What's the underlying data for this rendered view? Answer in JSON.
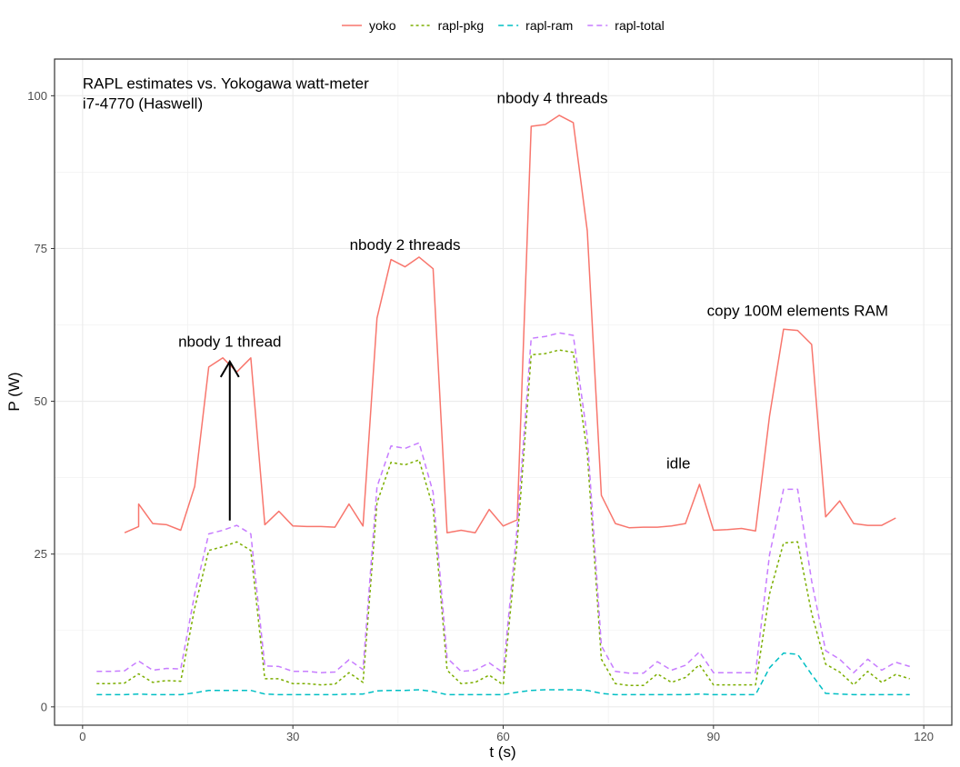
{
  "chart_data": {
    "type": "line",
    "xlabel": "t (s)",
    "ylabel": "P (W)",
    "xlim": [
      -4,
      124
    ],
    "ylim": [
      -3,
      106
    ],
    "xticks": [
      0,
      30,
      60,
      90,
      120
    ],
    "yticks": [
      0,
      25,
      50,
      75,
      100
    ],
    "grid": true,
    "legend_position": "top",
    "series": [
      {
        "name": "yoko",
        "color": "#F8766D",
        "dash": "solid",
        "x": [
          6,
          8,
          8,
          10,
          12,
          14,
          16,
          18,
          20,
          22,
          24,
          26,
          28,
          30,
          32,
          34,
          36,
          38,
          40,
          42,
          44,
          46,
          48,
          50,
          52,
          54,
          56,
          58,
          60,
          62,
          64,
          66,
          68,
          70,
          72,
          74,
          76,
          78,
          80,
          82,
          84,
          86,
          88,
          90,
          92,
          94,
          96,
          98,
          100,
          102,
          104,
          106,
          108,
          110,
          112,
          114,
          116
        ],
        "y": [
          28.5,
          29.5,
          33.2,
          30,
          29.8,
          28.9,
          36.1,
          55.6,
          57.1,
          54.8,
          57.1,
          29.8,
          32,
          29.6,
          29.5,
          29.5,
          29.4,
          33.2,
          29.6,
          63.6,
          73.2,
          72,
          73.6,
          71.7,
          28.5,
          28.9,
          28.5,
          32.3,
          29.6,
          30.6,
          95,
          95.3,
          96.8,
          95.6,
          77.9,
          34.6,
          30,
          29.3,
          29.4,
          29.4,
          29.6,
          30,
          36.4,
          28.9,
          29,
          29.2,
          28.8,
          47.6,
          61.8,
          61.6,
          59.3,
          31.1,
          33.7,
          30,
          29.7,
          29.7,
          30.9
        ]
      },
      {
        "name": "rapl-pkg",
        "color": "#7CAE00",
        "dash": "3,3",
        "x": [
          2,
          4,
          6,
          8,
          10,
          12,
          14,
          16,
          18,
          20,
          22,
          24,
          26,
          28,
          30,
          32,
          34,
          36,
          38,
          40,
          42,
          44,
          46,
          48,
          50,
          52,
          54,
          56,
          58,
          60,
          62,
          64,
          66,
          68,
          70,
          72,
          74,
          76,
          78,
          80,
          82,
          84,
          86,
          88,
          90,
          92,
          94,
          96,
          98,
          100,
          102,
          104,
          106,
          108,
          110,
          112,
          114,
          116,
          118
        ],
        "y": [
          3.8,
          3.8,
          3.9,
          5.4,
          4,
          4.3,
          4.2,
          16.2,
          25.6,
          26.2,
          27,
          25.6,
          4.6,
          4.6,
          3.8,
          3.8,
          3.6,
          3.7,
          5.6,
          4,
          33.4,
          40,
          39.6,
          40.4,
          32.6,
          6,
          3.8,
          4,
          5.2,
          3.6,
          27,
          57.6,
          57.8,
          58.4,
          58,
          41.5,
          7.8,
          3.8,
          3.5,
          3.5,
          5.4,
          4,
          4.8,
          6.9,
          3.6,
          3.6,
          3.6,
          3.6,
          18.5,
          26.8,
          27,
          15.3,
          7,
          5.7,
          3.6,
          5.8,
          4,
          5.3,
          4.6
        ]
      },
      {
        "name": "rapl-ram",
        "color": "#00BFC4",
        "dash": "6,4",
        "x": [
          2,
          4,
          6,
          8,
          10,
          12,
          14,
          16,
          18,
          20,
          22,
          24,
          26,
          28,
          30,
          32,
          34,
          36,
          38,
          40,
          42,
          44,
          46,
          48,
          50,
          52,
          54,
          56,
          58,
          60,
          62,
          64,
          66,
          68,
          70,
          72,
          74,
          76,
          78,
          80,
          82,
          84,
          86,
          88,
          90,
          92,
          94,
          96,
          98,
          100,
          102,
          104,
          106,
          108,
          110,
          112,
          114,
          116,
          118
        ],
        "y": [
          2,
          2,
          2,
          2.1,
          2,
          2,
          2,
          2.3,
          2.7,
          2.7,
          2.7,
          2.7,
          2.1,
          2,
          2,
          2,
          2,
          2,
          2.1,
          2.1,
          2.6,
          2.7,
          2.7,
          2.8,
          2.5,
          2,
          2,
          2,
          2,
          2,
          2.4,
          2.7,
          2.8,
          2.8,
          2.8,
          2.7,
          2.2,
          2,
          2,
          2,
          2,
          2,
          2,
          2.1,
          2,
          2,
          2,
          2,
          6.4,
          8.8,
          8.6,
          5.3,
          2.2,
          2.1,
          2,
          2,
          2,
          2,
          2
        ]
      },
      {
        "name": "rapl-total",
        "color": "#C77CFF",
        "dash": "6,4",
        "x": [
          2,
          4,
          6,
          8,
          10,
          12,
          14,
          16,
          18,
          20,
          22,
          24,
          26,
          28,
          30,
          32,
          34,
          36,
          38,
          40,
          42,
          44,
          46,
          48,
          50,
          52,
          54,
          56,
          58,
          60,
          62,
          64,
          66,
          68,
          70,
          72,
          74,
          76,
          78,
          80,
          82,
          84,
          86,
          88,
          90,
          92,
          94,
          96,
          98,
          100,
          102,
          104,
          106,
          108,
          110,
          112,
          114,
          116,
          118
        ],
        "y": [
          5.8,
          5.8,
          5.9,
          7.5,
          6,
          6.3,
          6.2,
          18.5,
          28.3,
          28.9,
          29.7,
          28.3,
          6.7,
          6.6,
          5.8,
          5.8,
          5.6,
          5.7,
          7.7,
          6.1,
          36,
          42.7,
          42.3,
          43.2,
          35.1,
          8,
          5.8,
          6,
          7.2,
          5.6,
          29.4,
          60.3,
          60.6,
          61.2,
          60.8,
          44.2,
          10,
          5.8,
          5.5,
          5.5,
          7.4,
          6,
          6.8,
          9,
          5.6,
          5.6,
          5.6,
          5.6,
          24.9,
          35.6,
          35.6,
          20.6,
          9.2,
          7.8,
          5.6,
          7.8,
          6,
          7.3,
          6.6
        ]
      }
    ],
    "annotations": [
      {
        "text": "RAPL estimates vs. Yokogawa watt-meter",
        "x": 0,
        "y": 101.2,
        "anchor": "start"
      },
      {
        "text": "i7-4770 (Haswell)",
        "x": 0,
        "y": 97.9,
        "anchor": "start"
      },
      {
        "text": "nbody 1 thread",
        "x": 21,
        "y": 58.9,
        "anchor": "middle"
      },
      {
        "text": "nbody 2 threads",
        "x": 46,
        "y": 74.8,
        "anchor": "middle"
      },
      {
        "text": "nbody 4 threads",
        "x": 67,
        "y": 98.8,
        "anchor": "middle"
      },
      {
        "text": "idle",
        "x": 85,
        "y": 39,
        "anchor": "middle"
      },
      {
        "text": "copy 100M elements RAM",
        "x": 102,
        "y": 64,
        "anchor": "middle"
      }
    ],
    "arrows": [
      {
        "x": 21,
        "y_from": 30.5,
        "y_to": 56.5
      }
    ]
  }
}
